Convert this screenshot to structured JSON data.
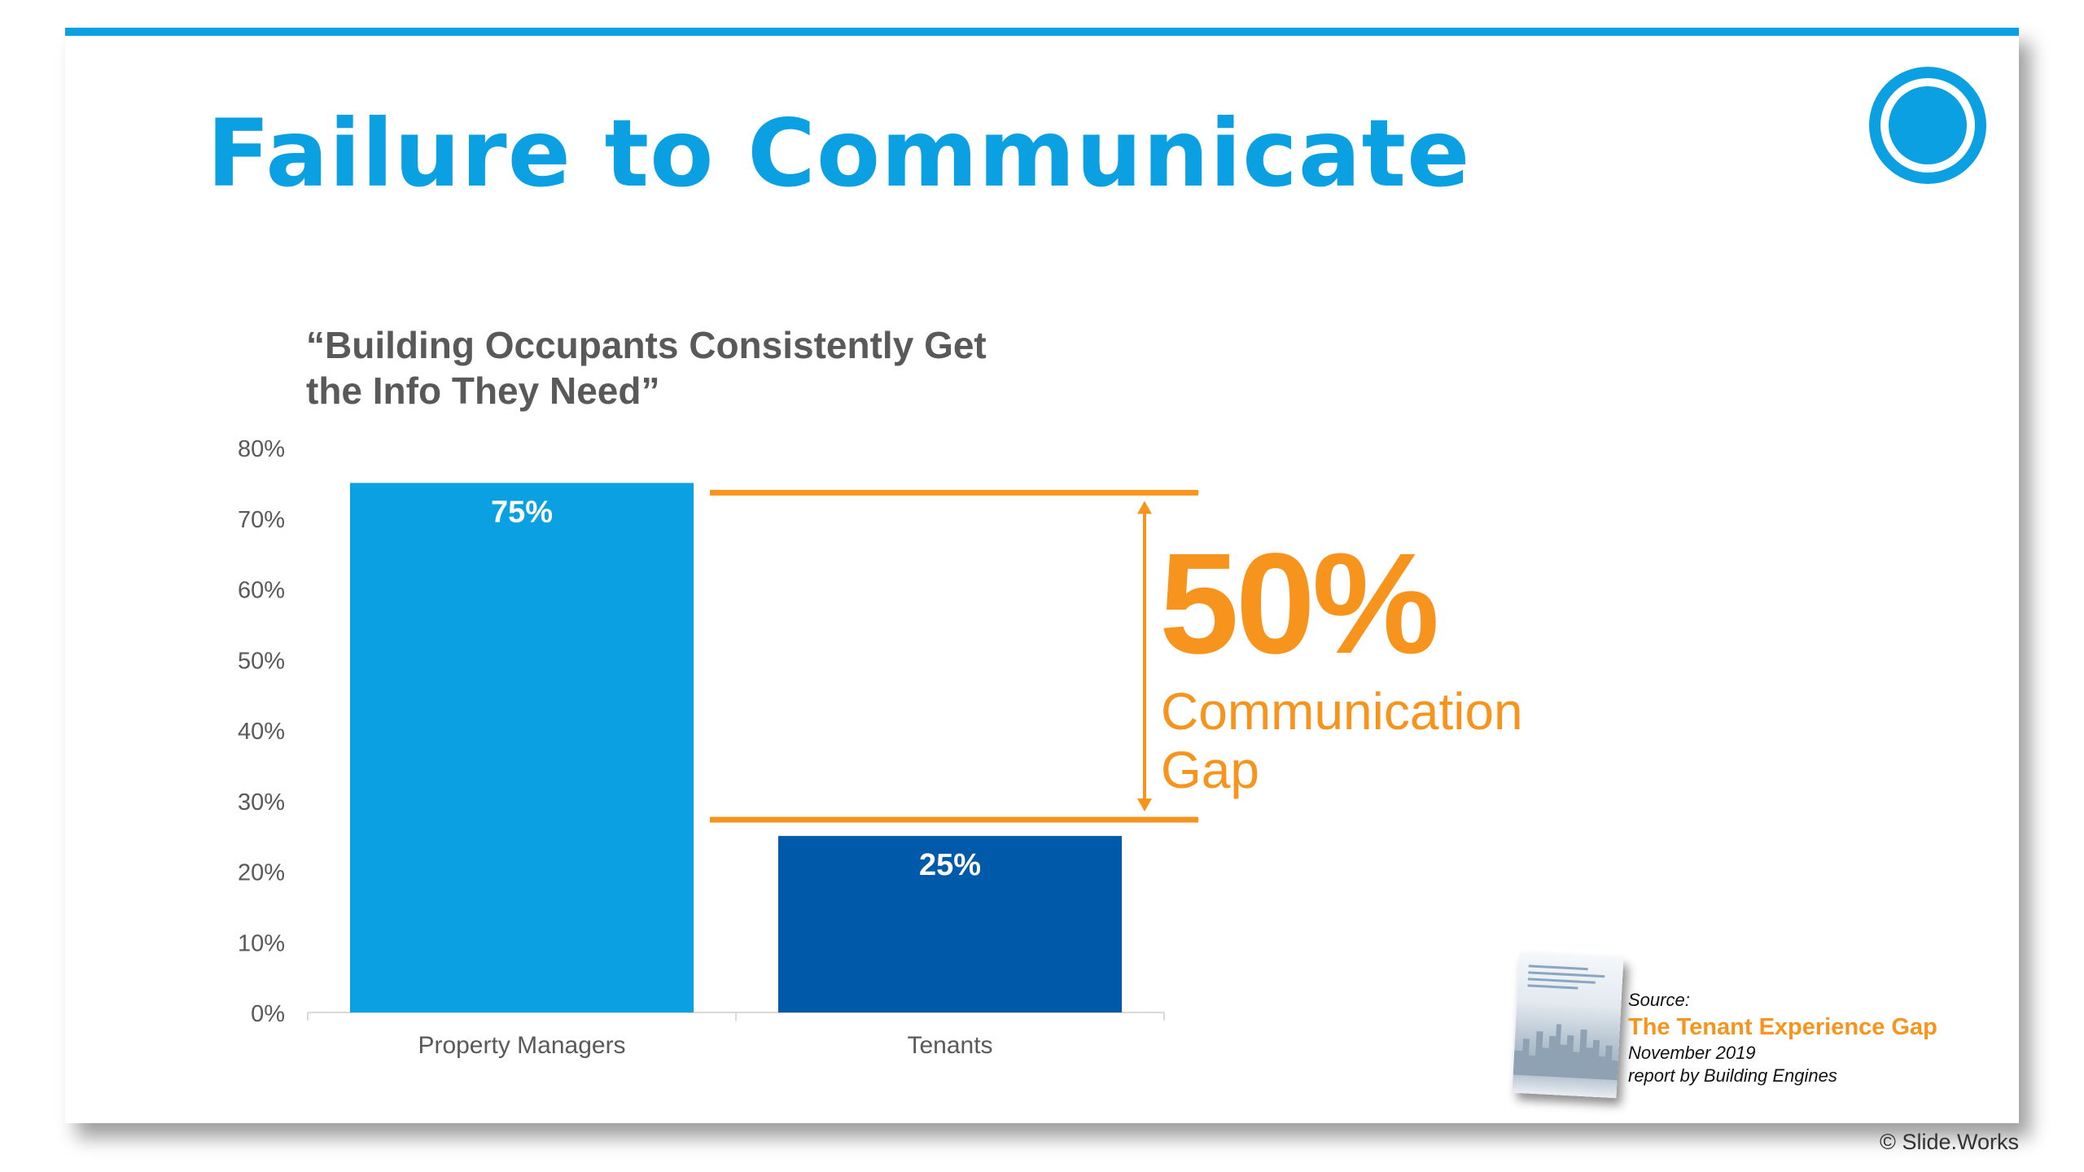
{
  "slide": {
    "title": "Failure to Communicate",
    "chart_subtitle": "“Building Occupants Consistently Get the Info They Need”"
  },
  "colors": {
    "accent": "#0aa0e2",
    "bar_property_managers": "#0aa0e2",
    "bar_tenants": "#005aaa",
    "gap": "#f7941d",
    "text_gray": "#595959"
  },
  "chart_data": {
    "type": "bar",
    "title": "“Building Occupants Consistently Get the Info They Need”",
    "categories": [
      "Property Managers",
      "Tenants"
    ],
    "values": [
      75,
      25
    ],
    "value_labels": [
      "75%",
      "25%"
    ],
    "ylim": [
      0,
      80
    ],
    "yticks": [
      0,
      10,
      20,
      30,
      40,
      50,
      60,
      70,
      80
    ],
    "ytick_labels": [
      "0%",
      "10%",
      "20%",
      "30%",
      "40%",
      "50%",
      "60%",
      "70%",
      "80%"
    ],
    "xlabel": "",
    "ylabel": "",
    "grid": false,
    "annotation": {
      "value": "50%",
      "label_line1": "Communication",
      "label_line2": "Gap",
      "from": 25,
      "to": 75
    }
  },
  "source": {
    "label": "Source:",
    "title": "The Tenant Experience Gap",
    "date": "November 2019",
    "by": "report by Building Engines"
  },
  "copyright": "© Slide.Works"
}
